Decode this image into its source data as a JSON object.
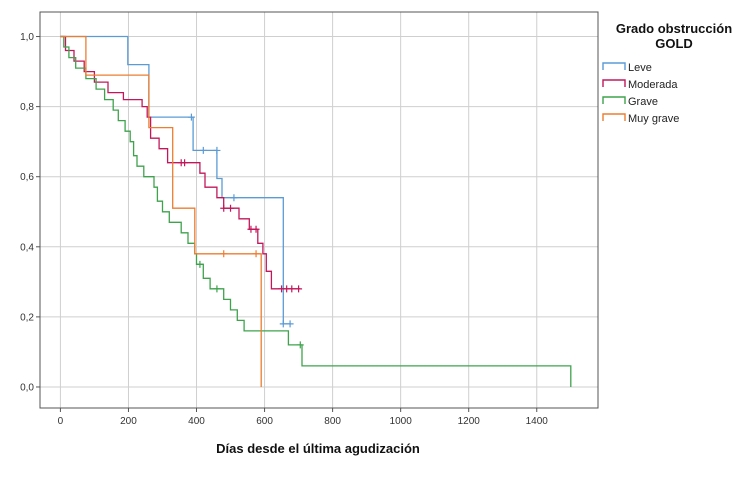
{
  "chart_data": {
    "type": "line",
    "step": true,
    "xlabel": "Días desde el última agudización",
    "ylabel": "",
    "xlim": [
      -60,
      1580
    ],
    "ylim": [
      -0.06,
      1.07
    ],
    "x_ticks": [
      0,
      200,
      400,
      600,
      800,
      1000,
      1200,
      1400
    ],
    "y_ticks": [
      0.0,
      0.2,
      0.4,
      0.6,
      0.8,
      1.0
    ],
    "x_tick_labels": [
      "0",
      "200",
      "400",
      "600",
      "800",
      "1000",
      "1200",
      "1400"
    ],
    "y_tick_labels": [
      "0,0",
      "0,2",
      "0,4",
      "0,6",
      "0,8",
      "1,0"
    ],
    "grid": true,
    "legend": {
      "title_line1": "Grado obstrucción",
      "title_line2": "GOLD",
      "position": "top-right, outside plot"
    },
    "series": [
      {
        "name": "Leve",
        "color": "#5b9bd5",
        "points": [
          [
            0,
            1.0
          ],
          [
            198,
            1.0
          ],
          [
            198,
            0.92
          ],
          [
            260,
            0.92
          ],
          [
            260,
            0.77
          ],
          [
            390,
            0.77
          ],
          [
            390,
            0.675
          ],
          [
            460,
            0.675
          ],
          [
            460,
            0.595
          ],
          [
            475,
            0.595
          ],
          [
            475,
            0.54
          ],
          [
            655,
            0.54
          ],
          [
            655,
            0.18
          ],
          [
            675,
            0.18
          ]
        ],
        "censored": [
          [
            385,
            0.77
          ],
          [
            420,
            0.675
          ],
          [
            460,
            0.675
          ],
          [
            510,
            0.54
          ],
          [
            655,
            0.18
          ],
          [
            675,
            0.18
          ]
        ]
      },
      {
        "name": "Moderada",
        "color": "#c2185b",
        "points": [
          [
            0,
            1.0
          ],
          [
            15,
            1.0
          ],
          [
            15,
            0.96
          ],
          [
            40,
            0.96
          ],
          [
            40,
            0.93
          ],
          [
            70,
            0.93
          ],
          [
            70,
            0.9
          ],
          [
            100,
            0.9
          ],
          [
            100,
            0.87
          ],
          [
            140,
            0.87
          ],
          [
            140,
            0.84
          ],
          [
            185,
            0.84
          ],
          [
            185,
            0.82
          ],
          [
            240,
            0.82
          ],
          [
            240,
            0.8
          ],
          [
            255,
            0.8
          ],
          [
            255,
            0.77
          ],
          [
            265,
            0.77
          ],
          [
            265,
            0.71
          ],
          [
            290,
            0.71
          ],
          [
            290,
            0.68
          ],
          [
            315,
            0.68
          ],
          [
            315,
            0.64
          ],
          [
            410,
            0.64
          ],
          [
            410,
            0.61
          ],
          [
            425,
            0.61
          ],
          [
            425,
            0.57
          ],
          [
            460,
            0.57
          ],
          [
            460,
            0.54
          ],
          [
            480,
            0.54
          ],
          [
            480,
            0.51
          ],
          [
            525,
            0.51
          ],
          [
            525,
            0.48
          ],
          [
            555,
            0.48
          ],
          [
            555,
            0.45
          ],
          [
            580,
            0.45
          ],
          [
            580,
            0.41
          ],
          [
            595,
            0.41
          ],
          [
            595,
            0.38
          ],
          [
            605,
            0.38
          ],
          [
            605,
            0.33
          ],
          [
            620,
            0.33
          ],
          [
            620,
            0.28
          ],
          [
            705,
            0.28
          ]
        ],
        "censored": [
          [
            355,
            0.64
          ],
          [
            365,
            0.64
          ],
          [
            480,
            0.51
          ],
          [
            500,
            0.51
          ],
          [
            560,
            0.45
          ],
          [
            575,
            0.45
          ],
          [
            650,
            0.28
          ],
          [
            665,
            0.28
          ],
          [
            680,
            0.28
          ],
          [
            700,
            0.28
          ]
        ]
      },
      {
        "name": "Grave",
        "color": "#3fa34d",
        "points": [
          [
            0,
            1.0
          ],
          [
            10,
            1.0
          ],
          [
            10,
            0.97
          ],
          [
            25,
            0.97
          ],
          [
            25,
            0.94
          ],
          [
            45,
            0.94
          ],
          [
            45,
            0.91
          ],
          [
            75,
            0.91
          ],
          [
            75,
            0.88
          ],
          [
            105,
            0.88
          ],
          [
            105,
            0.85
          ],
          [
            130,
            0.85
          ],
          [
            130,
            0.82
          ],
          [
            155,
            0.82
          ],
          [
            155,
            0.79
          ],
          [
            170,
            0.79
          ],
          [
            170,
            0.76
          ],
          [
            190,
            0.76
          ],
          [
            190,
            0.73
          ],
          [
            205,
            0.73
          ],
          [
            205,
            0.7
          ],
          [
            215,
            0.7
          ],
          [
            215,
            0.66
          ],
          [
            225,
            0.66
          ],
          [
            225,
            0.63
          ],
          [
            245,
            0.63
          ],
          [
            245,
            0.6
          ],
          [
            275,
            0.6
          ],
          [
            275,
            0.57
          ],
          [
            285,
            0.57
          ],
          [
            285,
            0.53
          ],
          [
            300,
            0.53
          ],
          [
            300,
            0.5
          ],
          [
            320,
            0.5
          ],
          [
            320,
            0.47
          ],
          [
            355,
            0.47
          ],
          [
            355,
            0.44
          ],
          [
            375,
            0.44
          ],
          [
            375,
            0.41
          ],
          [
            395,
            0.41
          ],
          [
            395,
            0.38
          ],
          [
            400,
            0.38
          ],
          [
            400,
            0.35
          ],
          [
            420,
            0.35
          ],
          [
            420,
            0.31
          ],
          [
            440,
            0.31
          ],
          [
            440,
            0.28
          ],
          [
            480,
            0.28
          ],
          [
            480,
            0.25
          ],
          [
            500,
            0.25
          ],
          [
            500,
            0.22
          ],
          [
            520,
            0.22
          ],
          [
            520,
            0.19
          ],
          [
            540,
            0.19
          ],
          [
            540,
            0.16
          ],
          [
            670,
            0.16
          ],
          [
            670,
            0.12
          ],
          [
            710,
            0.12
          ],
          [
            710,
            0.06
          ],
          [
            1500,
            0.06
          ],
          [
            1500,
            0.0
          ]
        ],
        "censored": [
          [
            410,
            0.35
          ],
          [
            460,
            0.28
          ],
          [
            705,
            0.12
          ]
        ]
      },
      {
        "name": "Muy grave",
        "color": "#ed7d31",
        "points": [
          [
            0,
            1.0
          ],
          [
            75,
            1.0
          ],
          [
            75,
            0.89
          ],
          [
            260,
            0.89
          ],
          [
            260,
            0.74
          ],
          [
            330,
            0.74
          ],
          [
            330,
            0.51
          ],
          [
            395,
            0.51
          ],
          [
            395,
            0.38
          ],
          [
            590,
            0.38
          ],
          [
            590,
            0.0
          ]
        ],
        "censored": [
          [
            480,
            0.38
          ],
          [
            575,
            0.38
          ]
        ]
      }
    ]
  }
}
